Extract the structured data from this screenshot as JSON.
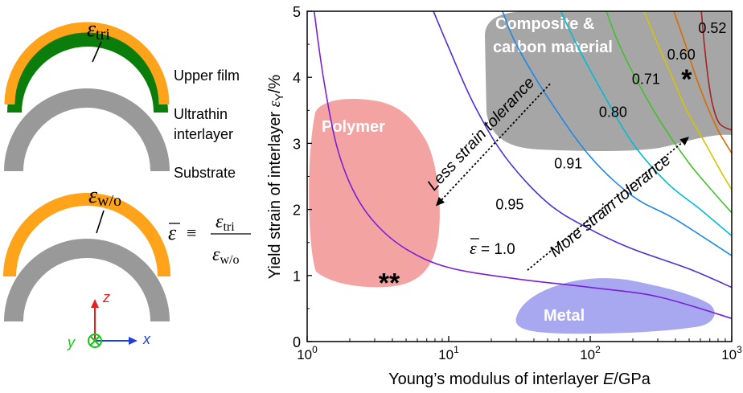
{
  "schematic": {
    "upper_label": "Upper film",
    "inter_label_1": "Ultrathin",
    "inter_label_2": "interlayer",
    "substrate_label": "Substrate",
    "eps_sym": "ε",
    "tri_sub": "tri",
    "wo_sub": "w/o",
    "equiv": "≡",
    "axis_x": "x",
    "axis_y": "y",
    "axis_z": "z",
    "colors": {
      "film": "#ffa31a",
      "interlayer": "#0b7d0b",
      "substrate": "#999999",
      "axis_x": "#1f3fd6",
      "axis_y": "#19c419",
      "axis_z": "#e81f1f"
    }
  },
  "chart_data": {
    "type": "line",
    "xscale": "log",
    "xlim": [
      1,
      1000
    ],
    "ylim": [
      0,
      5
    ],
    "xlabel_main": "Young’s modulus of interlayer ",
    "xlabel_var": "E",
    "xlabel_unit": "/GPa",
    "ylabel_main": "Yield strain of interlayer ",
    "ylabel_var": "ε",
    "ylabel_sub": "Y",
    "ylabel_unit": "/%",
    "xticks": [
      {
        "v": 1,
        "base": "10",
        "exp": "0"
      },
      {
        "v": 10,
        "base": "10",
        "exp": "1"
      },
      {
        "v": 100,
        "base": "10",
        "exp": "2"
      },
      {
        "v": 1000,
        "base": "10",
        "exp": "3"
      }
    ],
    "yticks": [
      0,
      1,
      2,
      3,
      4,
      5
    ],
    "series": [
      {
        "label": "1.0",
        "color": "#7a1fd6",
        "points": [
          [
            1.12,
            5
          ],
          [
            1.3,
            4
          ],
          [
            1.6,
            3
          ],
          [
            2.1,
            2.3
          ],
          [
            3,
            1.8
          ],
          [
            5,
            1.4
          ],
          [
            10,
            1.12
          ],
          [
            30,
            0.95
          ],
          [
            100,
            0.82
          ],
          [
            300,
            0.68
          ],
          [
            1000,
            0.35
          ]
        ]
      },
      {
        "label": "0.95",
        "color": "#4e2fd6",
        "points": [
          [
            7.8,
            5
          ],
          [
            10,
            4.45
          ],
          [
            15,
            3.6
          ],
          [
            25,
            2.8
          ],
          [
            50,
            2.1
          ],
          [
            100,
            1.7
          ],
          [
            200,
            1.4
          ],
          [
            500,
            1.1
          ],
          [
            1000,
            0.82
          ]
        ]
      },
      {
        "label": "0.91",
        "color": "#1e88e5",
        "points": [
          [
            24,
            5
          ],
          [
            30,
            4.5
          ],
          [
            50,
            3.7
          ],
          [
            100,
            2.8
          ],
          [
            200,
            2.2
          ],
          [
            400,
            1.85
          ],
          [
            1000,
            1.3
          ]
        ]
      },
      {
        "label": "0.80",
        "color": "#00bcd4",
        "points": [
          [
            62,
            5
          ],
          [
            80,
            4.5
          ],
          [
            120,
            3.8
          ],
          [
            200,
            3.0
          ],
          [
            350,
            2.4
          ],
          [
            600,
            2.0
          ],
          [
            1000,
            1.6
          ]
        ]
      },
      {
        "label": "0.71",
        "color": "#43c02b",
        "points": [
          [
            130,
            5
          ],
          [
            160,
            4.5
          ],
          [
            220,
            3.9
          ],
          [
            320,
            3.3
          ],
          [
            500,
            2.7
          ],
          [
            750,
            2.25
          ],
          [
            1000,
            1.95
          ]
        ]
      },
      {
        "label": "0.60",
        "color": "#d4c400",
        "points": [
          [
            240,
            5
          ],
          [
            300,
            4.5
          ],
          [
            380,
            4.0
          ],
          [
            480,
            3.5
          ],
          [
            650,
            3.0
          ],
          [
            850,
            2.55
          ],
          [
            1000,
            2.3
          ]
        ]
      },
      {
        "label": "0.52",
        "color": "#d96b00",
        "points": [
          [
            390,
            5
          ],
          [
            470,
            4.5
          ],
          [
            560,
            4.0
          ],
          [
            660,
            3.6
          ],
          [
            800,
            3.2
          ],
          [
            1000,
            2.85
          ]
        ]
      },
      {
        "label": "",
        "color": "#a52222",
        "points": [
          [
            610,
            5
          ],
          [
            640,
            4.5
          ],
          [
            680,
            4.0
          ],
          [
            730,
            3.6
          ],
          [
            820,
            3.3
          ],
          [
            1000,
            3.2
          ]
        ]
      }
    ],
    "contour_labels": [
      {
        "text": "0.52",
        "x": 730,
        "y": 4.67
      },
      {
        "text": "0.60",
        "x": 440,
        "y": 4.27
      },
      {
        "text": "0.71",
        "x": 248,
        "y": 3.9
      },
      {
        "text": "0.80",
        "x": 145,
        "y": 3.4
      },
      {
        "text": "0.91",
        "x": 70,
        "y": 2.62
      },
      {
        "text": "0.95",
        "x": 27,
        "y": 2.0
      }
    ],
    "eps_prefix": "ε",
    "eps_equals": " = 1.0",
    "regions": [
      {
        "label": "Polymer",
        "color": "#f4a3a3"
      },
      {
        "label": "Composite &",
        "label2": "carbon material",
        "color": "#a6a6a6"
      },
      {
        "label": "Metal",
        "color": "#a8a8f0"
      }
    ],
    "markers": [
      {
        "text": "*",
        "x": 480,
        "y": 4.0
      },
      {
        "text": "**",
        "x": 3.8,
        "y": 0.92
      }
    ],
    "annotations": [
      {
        "text": "Less strain tolerance",
        "x1": 52,
        "y1": 3.9,
        "x2": 8.1,
        "y2": 2.05
      },
      {
        "text": "More strain tolerance",
        "x1": 36,
        "y1": 1.08,
        "x2": 500,
        "y2": 3.1
      }
    ]
  }
}
